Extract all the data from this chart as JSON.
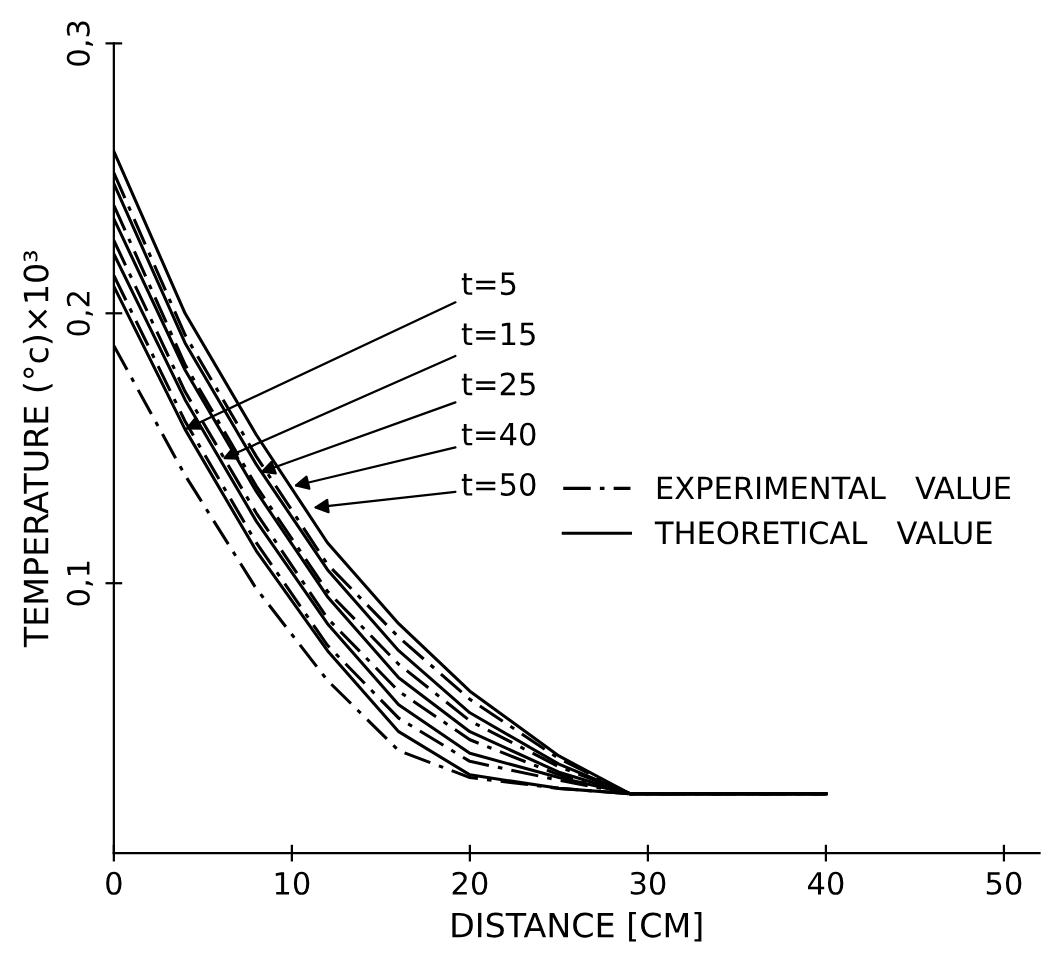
{
  "chart_data": {
    "type": "line",
    "xlabel": "DISTANCE [CM]",
    "ylabel": "TEMPERATURE (°c)×10³",
    "x": [
      0,
      4,
      8,
      12,
      16,
      20,
      25,
      29,
      40
    ],
    "series": [
      {
        "name": "THEORETICAL   VALUE",
        "color": "#000000",
        "line_style": "solid",
        "values": [
          0.21,
          0.157,
          0.112,
          0.075,
          0.045,
          0.029,
          0.024,
          0.022,
          0.022
        ]
      },
      {
        "color": "#000000",
        "line_style": "solid",
        "values": [
          0.222,
          0.168,
          0.123,
          0.085,
          0.055,
          0.037,
          0.028,
          0.022,
          0.022
        ]
      },
      {
        "color": "#000000",
        "line_style": "solid",
        "values": [
          0.235,
          0.179,
          0.134,
          0.095,
          0.065,
          0.045,
          0.03,
          0.022,
          0.022
        ]
      },
      {
        "color": "#000000",
        "line_style": "solid",
        "values": [
          0.248,
          0.189,
          0.144,
          0.105,
          0.075,
          0.052,
          0.033,
          0.022,
          0.022
        ]
      },
      {
        "color": "#000000",
        "line_style": "solid",
        "values": [
          0.26,
          0.2,
          0.155,
          0.115,
          0.085,
          0.06,
          0.036,
          0.022,
          0.022
        ]
      },
      {
        "name": "EXPERIMENTAL   VALUE",
        "color": "#000000",
        "line_style": "dashdot",
        "values": [
          0.188,
          0.14,
          0.098,
          0.064,
          0.038,
          0.028,
          0.024,
          0.022,
          0.022
        ]
      },
      {
        "color": "#000000",
        "line_style": "dashdot",
        "values": [
          0.214,
          0.16,
          0.115,
          0.077,
          0.05,
          0.034,
          0.027,
          0.022,
          0.022
        ]
      },
      {
        "color": "#000000",
        "line_style": "dashdot",
        "values": [
          0.227,
          0.171,
          0.126,
          0.087,
          0.06,
          0.042,
          0.029,
          0.022,
          0.022
        ]
      },
      {
        "color": "#000000",
        "line_style": "dashdot",
        "values": [
          0.24,
          0.181,
          0.136,
          0.097,
          0.07,
          0.049,
          0.032,
          0.022,
          0.022
        ]
      },
      {
        "color": "#000000",
        "line_style": "dashdot",
        "values": [
          0.252,
          0.192,
          0.147,
          0.107,
          0.08,
          0.057,
          0.035,
          0.022,
          0.022
        ]
      }
    ],
    "annotations": [
      {
        "text": "t=5",
        "x": 4.0,
        "y": 0.157
      },
      {
        "text": "t=15",
        "x": 6.1,
        "y": 0.146
      },
      {
        "text": "t=25",
        "x": 8.2,
        "y": 0.141
      },
      {
        "text": "t=40",
        "x": 10.1,
        "y": 0.136
      },
      {
        "text": "t=50",
        "x": 11.2,
        "y": 0.128
      }
    ],
    "xlim": [
      0,
      52
    ],
    "xticks": [
      0,
      10,
      20,
      30,
      40,
      50
    ],
    "ylim": [
      0,
      0.3
    ],
    "yticks": [
      {
        "value": 0.1,
        "label": "0,1"
      },
      {
        "value": 0.2,
        "label": "0,2"
      },
      {
        "value": 0.3,
        "label": "0,3"
      }
    ],
    "legend": "center right",
    "grid": false
  }
}
